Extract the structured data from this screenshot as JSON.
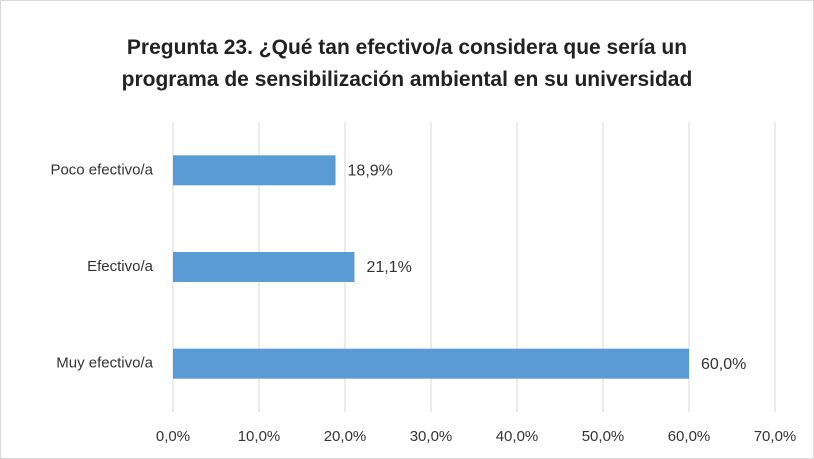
{
  "chart_data": {
    "type": "bar",
    "orientation": "horizontal",
    "title": "Pregunta 23. ¿Qué tan efectivo/a considera que sería un programa de sensibilización ambiental en su universidad",
    "categories": [
      "Poco efectivo/a",
      "Efectivo/a",
      "Muy efectivo/a"
    ],
    "values": [
      18.9,
      21.1,
      60.0
    ],
    "value_labels": [
      "18,9%",
      "21,1%",
      "60,0%"
    ],
    "color": "#5b9bd5",
    "xlim": [
      0,
      70
    ],
    "xticks": [
      {
        "value": 0,
        "label": "0,0%"
      },
      {
        "value": 10,
        "label": "10,0%"
      },
      {
        "value": 20,
        "label": "20,0%"
      },
      {
        "value": 30,
        "label": "30,0%"
      },
      {
        "value": 40,
        "label": "40,0%"
      },
      {
        "value": 50,
        "label": "50,0%"
      },
      {
        "value": 60,
        "label": "60,0%"
      },
      {
        "value": 70,
        "label": "70,0%"
      }
    ],
    "grid": true
  }
}
